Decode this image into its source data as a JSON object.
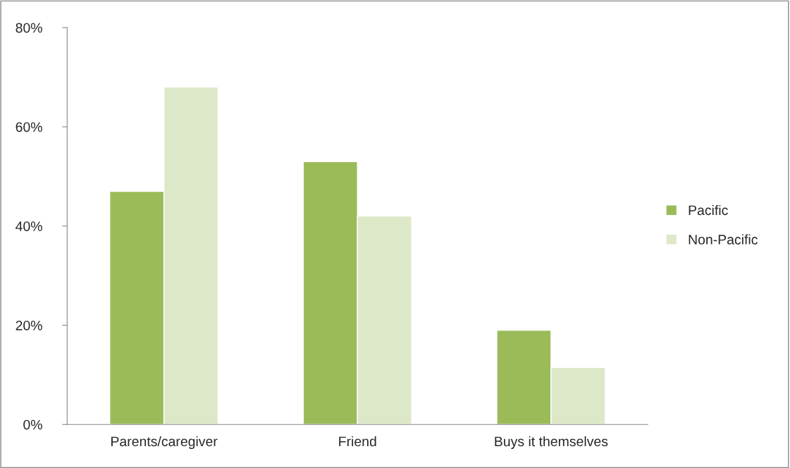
{
  "chart_data": {
    "type": "bar",
    "categories": [
      "Parents/caregiver",
      "Friend",
      "Buys it themselves"
    ],
    "series": [
      {
        "name": "Pacific",
        "color": "#9bbb59",
        "values": [
          47,
          53,
          19
        ]
      },
      {
        "name": "Non-Pacific",
        "color": "#dde8c8",
        "values": [
          68,
          42,
          11.5
        ]
      }
    ],
    "ylim": [
      0,
      80
    ],
    "yticks": [
      {
        "value": 0,
        "label": "0%"
      },
      {
        "value": 20,
        "label": "20%"
      },
      {
        "value": 40,
        "label": "40%"
      },
      {
        "value": 60,
        "label": "60%"
      },
      {
        "value": 80,
        "label": "80%"
      }
    ],
    "grid": false,
    "legend": "right"
  }
}
